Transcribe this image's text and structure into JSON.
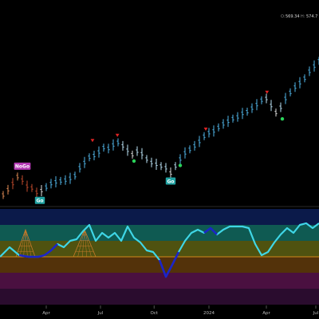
{
  "ohlc_readout": {
    "o_label": "O:",
    "o_value": "569.34",
    "h_label": "H:",
    "h_value": "574.7"
  },
  "x_axis": {
    "ticks": [
      "Apr",
      "Jul",
      "Oct",
      "2024",
      "Apr",
      "Jul"
    ],
    "year_marker": "2024"
  },
  "signals": {
    "nogo_label": "NoGo",
    "go_label": "Go"
  },
  "colors": {
    "background": "#000000",
    "strong_go": "#4fb4e6",
    "weak_go": "#b9dff2",
    "strong_nogo": "#c14a2c",
    "weak_nogo": "#e08a54",
    "neutral": "#d9d9d9",
    "go_badge": "#21a3a3",
    "nogo_badge": "#b43ab4",
    "go_dot": "#2ad35a",
    "nogo_triangle": "#e02424",
    "oscillator_line": "#3fd6e6",
    "oscillator_low_segment": "#1b24c8",
    "zero_line": "#d18a1a",
    "cloud": "#c87a2a"
  },
  "chart_data": [
    {
      "type": "ohlc",
      "panel": "price",
      "y_scale": "linear",
      "ylim": [
        390,
        590
      ],
      "x_domain": [
        0,
        100
      ],
      "grid": false,
      "legend": "none",
      "last_bar": {
        "open": 569.34,
        "high": 574.7
      },
      "bars": [
        {
          "x": 1,
          "v": 395,
          "c": "weak_nogo"
        },
        {
          "x": 2.5,
          "v": 401,
          "c": "weak_nogo"
        },
        {
          "x": 4,
          "v": 408,
          "c": "strong_nogo"
        },
        {
          "x": 5.5,
          "v": 416,
          "c": "weak_nogo"
        },
        {
          "x": 7,
          "v": 412,
          "c": "strong_nogo"
        },
        {
          "x": 8.5,
          "v": 405,
          "c": "strong_nogo"
        },
        {
          "x": 10,
          "v": 403,
          "c": "strong_nogo"
        },
        {
          "x": 11.5,
          "v": 398,
          "c": "strong_nogo"
        },
        {
          "x": 13,
          "v": 400,
          "c": "neutral"
        },
        {
          "x": 14.5,
          "v": 404,
          "c": "strong_go"
        },
        {
          "x": 16,
          "v": 408,
          "c": "strong_go"
        },
        {
          "x": 17.5,
          "v": 410,
          "c": "strong_go"
        },
        {
          "x": 19,
          "v": 411,
          "c": "strong_go"
        },
        {
          "x": 20.5,
          "v": 412,
          "c": "strong_go"
        },
        {
          "x": 22,
          "v": 414,
          "c": "strong_go"
        },
        {
          "x": 23.5,
          "v": 417,
          "c": "strong_go"
        },
        {
          "x": 25,
          "v": 426,
          "c": "strong_go"
        },
        {
          "x": 26.5,
          "v": 432,
          "c": "strong_go"
        },
        {
          "x": 28,
          "v": 438,
          "c": "strong_go"
        },
        {
          "x": 29.5,
          "v": 440,
          "c": "strong_go"
        },
        {
          "x": 31,
          "v": 444,
          "c": "strong_go"
        },
        {
          "x": 32.5,
          "v": 449,
          "c": "strong_go"
        },
        {
          "x": 34,
          "v": 448,
          "c": "strong_go"
        },
        {
          "x": 35.5,
          "v": 452,
          "c": "strong_go"
        },
        {
          "x": 37,
          "v": 455,
          "c": "strong_go"
        },
        {
          "x": 38.5,
          "v": 451,
          "c": "weak_go"
        },
        {
          "x": 40,
          "v": 446,
          "c": "weak_go"
        },
        {
          "x": 41.5,
          "v": 441,
          "c": "neutral"
        },
        {
          "x": 43,
          "v": 445,
          "c": "weak_go"
        },
        {
          "x": 44.5,
          "v": 442,
          "c": "weak_go"
        },
        {
          "x": 46,
          "v": 436,
          "c": "weak_go"
        },
        {
          "x": 47.5,
          "v": 432,
          "c": "weak_go"
        },
        {
          "x": 49,
          "v": 430,
          "c": "weak_go"
        },
        {
          "x": 50.5,
          "v": 428,
          "c": "weak_go"
        },
        {
          "x": 52,
          "v": 426,
          "c": "weak_go"
        },
        {
          "x": 53.5,
          "v": 420,
          "c": "neutral"
        },
        {
          "x": 55,
          "v": 428,
          "c": "weak_go"
        },
        {
          "x": 56.5,
          "v": 436,
          "c": "strong_go"
        },
        {
          "x": 58,
          "v": 443,
          "c": "strong_go"
        },
        {
          "x": 59.5,
          "v": 447,
          "c": "strong_go"
        },
        {
          "x": 61,
          "v": 451,
          "c": "strong_go"
        },
        {
          "x": 62.5,
          "v": 456,
          "c": "strong_go"
        },
        {
          "x": 64,
          "v": 462,
          "c": "strong_go"
        },
        {
          "x": 65.5,
          "v": 466,
          "c": "strong_go"
        },
        {
          "x": 67,
          "v": 468,
          "c": "strong_go"
        },
        {
          "x": 68.5,
          "v": 472,
          "c": "strong_go"
        },
        {
          "x": 70,
          "v": 476,
          "c": "strong_go"
        },
        {
          "x": 71.5,
          "v": 479,
          "c": "strong_go"
        },
        {
          "x": 73,
          "v": 482,
          "c": "strong_go"
        },
        {
          "x": 74.5,
          "v": 484,
          "c": "strong_go"
        },
        {
          "x": 76,
          "v": 488,
          "c": "strong_go"
        },
        {
          "x": 77.5,
          "v": 490,
          "c": "strong_go"
        },
        {
          "x": 79,
          "v": 494,
          "c": "strong_go"
        },
        {
          "x": 80.5,
          "v": 498,
          "c": "strong_go"
        },
        {
          "x": 82,
          "v": 503,
          "c": "strong_go"
        },
        {
          "x": 83.5,
          "v": 505,
          "c": "weak_go"
        },
        {
          "x": 85,
          "v": 497,
          "c": "weak_go"
        },
        {
          "x": 86.5,
          "v": 489,
          "c": "neutral"
        },
        {
          "x": 88,
          "v": 495,
          "c": "weak_go"
        },
        {
          "x": 89.5,
          "v": 505,
          "c": "strong_go"
        },
        {
          "x": 91,
          "v": 512,
          "c": "strong_go"
        },
        {
          "x": 92.5,
          "v": 518,
          "c": "strong_go"
        },
        {
          "x": 94,
          "v": 523,
          "c": "strong_go"
        },
        {
          "x": 95.5,
          "v": 528,
          "c": "strong_go"
        },
        {
          "x": 97,
          "v": 536,
          "c": "strong_go"
        },
        {
          "x": 98.5,
          "v": 542,
          "c": "strong_go"
        },
        {
          "x": 100,
          "v": 548,
          "c": "strong_go"
        }
      ],
      "go_signals": [
        {
          "label": "Go",
          "x": 12.5,
          "v": 398
        },
        {
          "label": "Go",
          "x": 53.5,
          "v": 420
        }
      ],
      "nogo_signals": [
        {
          "label": "NoGo",
          "x": 7,
          "v": 416
        }
      ],
      "go_dots": [
        {
          "x": 13.5,
          "v": 398
        },
        {
          "x": 42,
          "v": 441
        },
        {
          "x": 56.5,
          "v": 436
        },
        {
          "x": 88.5,
          "v": 489
        }
      ],
      "nogo_triangles": [
        {
          "x": 29,
          "v": 457
        },
        {
          "x": 36.8,
          "v": 463
        },
        {
          "x": 64.5,
          "v": 470
        },
        {
          "x": 83.7,
          "v": 512
        }
      ],
      "x_ticks": [
        {
          "label": "Apr",
          "x": 14.5
        },
        {
          "label": "Jul",
          "x": 31.5
        },
        {
          "label": "Oct",
          "x": 48.3
        },
        {
          "label": "2024",
          "x": 65.5
        },
        {
          "label": "Apr",
          "x": 83.5
        },
        {
          "label": "Jul",
          "x": 100
        }
      ]
    },
    {
      "type": "line",
      "panel": "oscillator",
      "ylim": [
        -6,
        6
      ],
      "zero_line": 0,
      "bands": [
        {
          "from": 4,
          "to": 6,
          "color": "#0b1a4a"
        },
        {
          "from": 2,
          "to": 4,
          "color": "#0f5a52"
        },
        {
          "from": 0,
          "to": 2,
          "color": "#4f5210"
        },
        {
          "from": -2,
          "to": 0,
          "color": "#53320a"
        },
        {
          "from": -4,
          "to": -2,
          "color": "#4a1040"
        },
        {
          "from": -6,
          "to": -4,
          "color": "#2a0c2e"
        }
      ],
      "x": [
        0,
        3,
        6,
        9,
        12,
        14,
        16,
        18,
        20,
        22,
        24,
        26,
        28,
        30,
        32,
        34,
        36,
        38,
        40,
        42,
        44,
        46,
        48,
        50,
        52,
        54,
        56,
        58,
        60,
        62,
        64,
        66,
        68,
        70,
        72,
        74,
        76,
        78,
        80,
        82,
        84,
        86,
        88,
        90,
        92,
        94,
        96,
        98,
        100
      ],
      "values": [
        0,
        1.2,
        0.2,
        0,
        0,
        0.2,
        0.8,
        1.6,
        1.2,
        2.0,
        2.2,
        3.2,
        4.0,
        2.0,
        3.0,
        2.4,
        3.0,
        2.0,
        3.8,
        2.4,
        1.8,
        0.8,
        0.6,
        -0.4,
        -2.5,
        -1.0,
        0.6,
        2.0,
        3.0,
        3.4,
        3.0,
        3.6,
        2.8,
        3.4,
        3.8,
        3.8,
        3.8,
        3.6,
        1.6,
        0.2,
        0.6,
        1.8,
        2.8,
        3.6,
        3.0,
        4.0,
        4.2,
        3.6,
        4.2
      ],
      "low_segments": [
        [
          6,
          18
        ],
        [
          50,
          56
        ],
        [
          64,
          68
        ]
      ],
      "clouds": [
        [
          5,
          11
        ],
        [
          23,
          30
        ]
      ]
    }
  ]
}
